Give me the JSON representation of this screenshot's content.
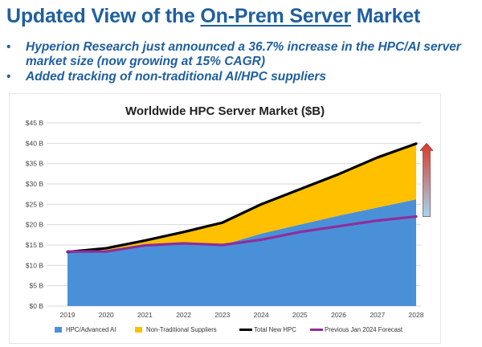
{
  "header": {
    "title_pre": "Updated View of the ",
    "title_underlined": "On-Prem Server",
    "title_post": " Market"
  },
  "bullets": [
    "Hyperion Research just announced a 36.7% increase in the HPC/AI server market size (now growing at 15% CAGR)",
    "Added tracking of non-traditional AI/HPC suppliers"
  ],
  "bullet_glyph": "•",
  "chart_data": {
    "type": "area",
    "title": "Worldwide HPC Server Market ($B)",
    "categories": [
      "2019",
      "2020",
      "2021",
      "2022",
      "2023",
      "2024",
      "2025",
      "2026",
      "2027",
      "2028"
    ],
    "y_tick_labels": [
      "$0 B",
      "$5 B",
      "$10 B",
      "$15 B",
      "$20 B",
      "$25 B",
      "$30 B",
      "$35 B",
      "$40 B",
      "$45 B"
    ],
    "ylim": [
      0,
      45
    ],
    "grid": true,
    "legend_position": "bottom",
    "series": [
      {
        "name": "HPC/Advanced AI",
        "kind": "area",
        "color": "#4a90d9",
        "values": [
          13.3,
          13.6,
          14.8,
          15.2,
          15.0,
          17.8,
          20.0,
          22.2,
          24.2,
          26.2
        ]
      },
      {
        "name": "Non-Traditional Suppliers",
        "kind": "stacked-area",
        "color": "#ffc000",
        "values": [
          0,
          0.6,
          1.3,
          3.0,
          5.5,
          7.2,
          8.7,
          10.2,
          12.3,
          13.7
        ]
      },
      {
        "name": "Total New HPC",
        "kind": "line",
        "color": "#000000",
        "values": [
          13.3,
          14.2,
          16.1,
          18.2,
          20.5,
          25.0,
          28.7,
          32.4,
          36.5,
          39.9
        ]
      },
      {
        "name": "Previous Jan 2024 Forecast",
        "kind": "line",
        "color": "#8e2e9b",
        "values": [
          13.4,
          13.4,
          14.9,
          15.4,
          15.0,
          16.3,
          18.2,
          19.6,
          21.0,
          22.0
        ]
      }
    ],
    "annotation_arrow": {
      "direction": "up",
      "from_value": 22,
      "to_value": 40,
      "top_color": "#d93a2b",
      "bottom_color": "#9fd8f2"
    }
  }
}
